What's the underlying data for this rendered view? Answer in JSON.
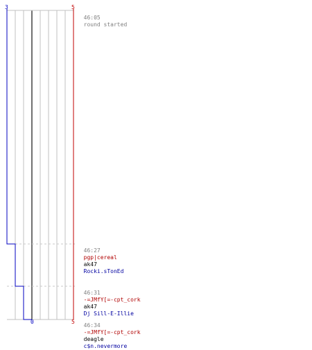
{
  "scores": {
    "left_top": "3",
    "right_top": "5",
    "bottom_middle": "0",
    "right_bottom": "5"
  },
  "colors": {
    "team_a": "#0000c0",
    "team_b": "#c00000",
    "grid": "#c0c0c0",
    "midline": "#707070",
    "text_gray": "#808080",
    "text_red": "#b00000",
    "text_blue": "#0000a0"
  },
  "log": [
    {
      "time": "46:05",
      "message": "round started"
    },
    {
      "time": "46:27",
      "attacker": "pgp|cereal",
      "attacker_team": "red",
      "weapon": "ak47",
      "victim": "Rocki.sTonEd",
      "victim_team": "blue"
    },
    {
      "time": "46:31",
      "attacker": "-=JMfY[=-cpt_cork",
      "attacker_team": "red",
      "weapon": "ak47",
      "victim": "Dj Sill-E-Illie",
      "victim_team": "blue"
    },
    {
      "time": "46:34",
      "attacker": "-=JMfY[=-cpt_cork",
      "attacker_team": "red",
      "weapon": "deagle",
      "victim": "c$n.nevermore",
      "victim_team": "blue"
    }
  ],
  "chart_data": {
    "type": "line",
    "x_seconds_label": "mm:ss",
    "events_time": [
      "46:05",
      "46:27",
      "46:31",
      "46:34"
    ],
    "series": [
      {
        "name": "",
        "values": [
          3,
          2,
          1,
          0
        ]
      },
      {
        "name": "",
        "values": [
          5,
          5,
          5,
          5
        ]
      }
    ],
    "ylim": [
      0,
      5
    ]
  }
}
